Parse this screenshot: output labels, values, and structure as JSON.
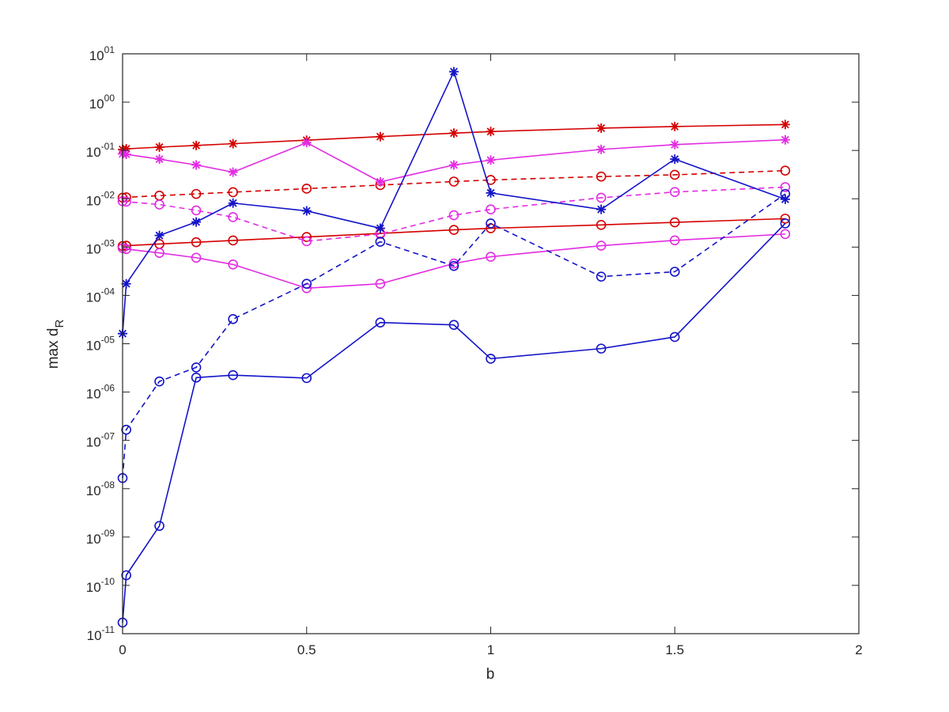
{
  "chart_data": {
    "type": "line",
    "title": "",
    "xlabel": "b",
    "ylabel_main": "max d",
    "ylabel_sub": "R",
    "xlim": [
      0,
      2
    ],
    "ylim": [
      1e-11,
      10
    ],
    "yscale": "log",
    "grid": false,
    "legend": "none",
    "xticks": [
      {
        "value": 0,
        "label": "0"
      },
      {
        "value": 0.5,
        "label": "0.5"
      },
      {
        "value": 1,
        "label": "1"
      },
      {
        "value": 1.5,
        "label": "1.5"
      },
      {
        "value": 2,
        "label": "2"
      }
    ],
    "yticks": [
      {
        "exp": -11,
        "base": "10",
        "sup": "-11"
      },
      {
        "exp": -10,
        "base": "10",
        "sup": "-10"
      },
      {
        "exp": -9,
        "base": "10",
        "sup": "-09"
      },
      {
        "exp": -8,
        "base": "10",
        "sup": "-08"
      },
      {
        "exp": -7,
        "base": "10",
        "sup": "-07"
      },
      {
        "exp": -6,
        "base": "10",
        "sup": "-06"
      },
      {
        "exp": -5,
        "base": "10",
        "sup": "-05"
      },
      {
        "exp": -4,
        "base": "10",
        "sup": "-04"
      },
      {
        "exp": -3,
        "base": "10",
        "sup": "-03"
      },
      {
        "exp": -2,
        "base": "10",
        "sup": "-02"
      },
      {
        "exp": -1,
        "base": "10",
        "sup": "-01"
      },
      {
        "exp": 0,
        "base": "10",
        "sup": "00"
      },
      {
        "exp": 1,
        "base": "10",
        "sup": "01"
      }
    ],
    "series": [
      {
        "color": "#d40000",
        "dash": "solid",
        "marker": "star",
        "x": [
          0,
          0.01,
          0.1,
          0.2,
          0.3,
          0.5,
          0.7,
          0.9,
          1.0,
          1.3,
          1.5,
          1.8
        ],
        "y": [
          0.105,
          0.108,
          0.117,
          0.127,
          0.138,
          0.163,
          0.193,
          0.228,
          0.246,
          0.289,
          0.313,
          0.344
        ]
      },
      {
        "color": "#d40000",
        "dash": "dashed",
        "marker": "circle",
        "x": [
          0,
          0.01,
          0.1,
          0.2,
          0.3,
          0.5,
          0.7,
          0.9,
          1.0,
          1.3,
          1.5,
          1.8
        ],
        "y": [
          0.0105,
          0.0107,
          0.0116,
          0.0126,
          0.0137,
          0.0162,
          0.0192,
          0.0227,
          0.0245,
          0.0288,
          0.0313,
          0.0382
        ]
      },
      {
        "color": "#d40000",
        "dash": "solid",
        "marker": "circle",
        "x": [
          0,
          0.01,
          0.1,
          0.2,
          0.3,
          0.5,
          0.7,
          0.9,
          1.0,
          1.3,
          1.5,
          1.8
        ],
        "y": [
          0.00105,
          0.00107,
          0.00116,
          0.00126,
          0.00137,
          0.00162,
          0.00192,
          0.00227,
          0.00245,
          0.00288,
          0.00325,
          0.00388
        ]
      },
      {
        "color": "#e22ce2",
        "dash": "solid",
        "marker": "star",
        "x": [
          0,
          0.01,
          0.1,
          0.2,
          0.3,
          0.5,
          0.7,
          0.9,
          1.0,
          1.3,
          1.5,
          1.8
        ],
        "y": [
          0.0851,
          0.0832,
          0.0661,
          0.0501,
          0.0355,
          0.145,
          0.0224,
          0.0501,
          0.0631,
          0.105,
          0.132,
          0.166
        ]
      },
      {
        "color": "#e22ce2",
        "dash": "dashed",
        "marker": "circle",
        "x": [
          0,
          0.01,
          0.1,
          0.2,
          0.3,
          0.5,
          0.7,
          0.9,
          1.0,
          1.3,
          1.5,
          1.8
        ],
        "y": [
          0.00891,
          0.00871,
          0.00759,
          0.00575,
          0.00417,
          0.00132,
          0.00186,
          0.00457,
          0.00603,
          0.0105,
          0.0138,
          0.0174
        ]
      },
      {
        "color": "#e22ce2",
        "dash": "solid",
        "marker": "circle",
        "x": [
          0,
          0.01,
          0.1,
          0.2,
          0.3,
          0.5,
          0.7,
          0.9,
          1.0,
          1.3,
          1.5,
          1.8
        ],
        "y": [
          0.000955,
          0.000912,
          0.000759,
          0.000603,
          0.000437,
          0.000141,
          0.000174,
          0.000457,
          0.000631,
          0.00107,
          0.00138,
          0.00186
        ]
      },
      {
        "color": "#1414c8",
        "dash": "solid",
        "marker": "star",
        "x": [
          0,
          0.01,
          0.1,
          0.2,
          0.3,
          0.5,
          0.7,
          0.9,
          1.0,
          1.3,
          1.5,
          1.8
        ],
        "y": [
          1.62e-05,
          0.000174,
          0.00174,
          0.00331,
          0.00813,
          0.00562,
          0.00245,
          4.27,
          0.0132,
          0.00603,
          0.0661,
          0.00977
        ]
      },
      {
        "color": "#1414c8",
        "dash": "dashed",
        "marker": "circle",
        "x": [
          0,
          0.01,
          0.1,
          0.2,
          0.3,
          0.5,
          0.7,
          0.9,
          1.0,
          1.3,
          1.5,
          1.8
        ],
        "y": [
          1.66e-08,
          1.66e-07,
          1.66e-06,
          3.24e-06,
          3.24e-05,
          0.000174,
          0.00129,
          0.000407,
          0.00309,
          0.000245,
          0.000309,
          0.0126
        ]
      },
      {
        "color": "#1414c8",
        "dash": "solid",
        "marker": "circle",
        "x": [
          0,
          0.01,
          0.1,
          0.2,
          0.3,
          0.5,
          0.7,
          0.9,
          1.0,
          1.3,
          1.5,
          1.8
        ],
        "y": [
          1.7e-11,
          1.62e-10,
          1.7e-09,
          1.99e-06,
          2.24e-06,
          1.95e-06,
          2.75e-05,
          2.45e-05,
          4.9e-06,
          7.94e-06,
          1.38e-05,
          0.00309
        ]
      }
    ]
  }
}
